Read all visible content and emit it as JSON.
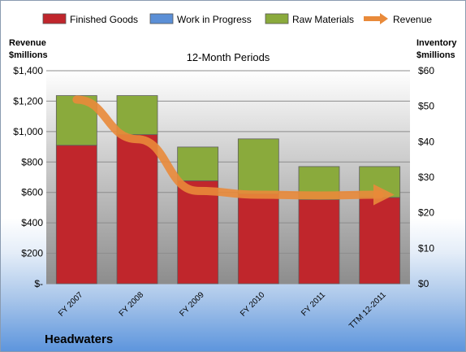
{
  "chart_data": {
    "type": "bar",
    "title": "12-Month Periods",
    "company": "Headwaters",
    "categories": [
      "FY 2007",
      "FY 2008",
      "FY 2009",
      "FY 2010",
      "FY 2011",
      "TTM 12-2011"
    ],
    "series": [
      {
        "name": "Finished Goods",
        "axis": "right",
        "values": [
          39,
          42,
          29,
          25.3,
          23.7,
          24.3
        ],
        "color": "#c0262c"
      },
      {
        "name": "Work in Progress",
        "axis": "right",
        "values": [
          0,
          0,
          0,
          0,
          0,
          0
        ],
        "color": "#5b8fd6"
      },
      {
        "name": "Raw Materials",
        "axis": "right",
        "values": [
          14,
          11,
          9.5,
          15.5,
          9.3,
          8.7
        ],
        "color": "#8aaa3c"
      },
      {
        "name": "Revenue",
        "axis": "left",
        "type": "line",
        "values": [
          1210,
          950,
          610,
          585,
          580,
          585
        ],
        "color": "#e98a3a"
      }
    ],
    "ylabel_left": "Revenue\n$millions",
    "ylabel_right": "Inventory\n$millions",
    "ylim_left": [
      0,
      1400
    ],
    "ylim_right": [
      0,
      60
    ],
    "left_ticks": [
      "$-",
      "$200",
      "$400",
      "$600",
      "$800",
      "$1,000",
      "$1,200",
      "$1,400"
    ],
    "right_ticks": [
      "$0",
      "$10",
      "$20",
      "$30",
      "$40",
      "$50",
      "$60"
    ],
    "grid": true,
    "legend_position": "top"
  }
}
